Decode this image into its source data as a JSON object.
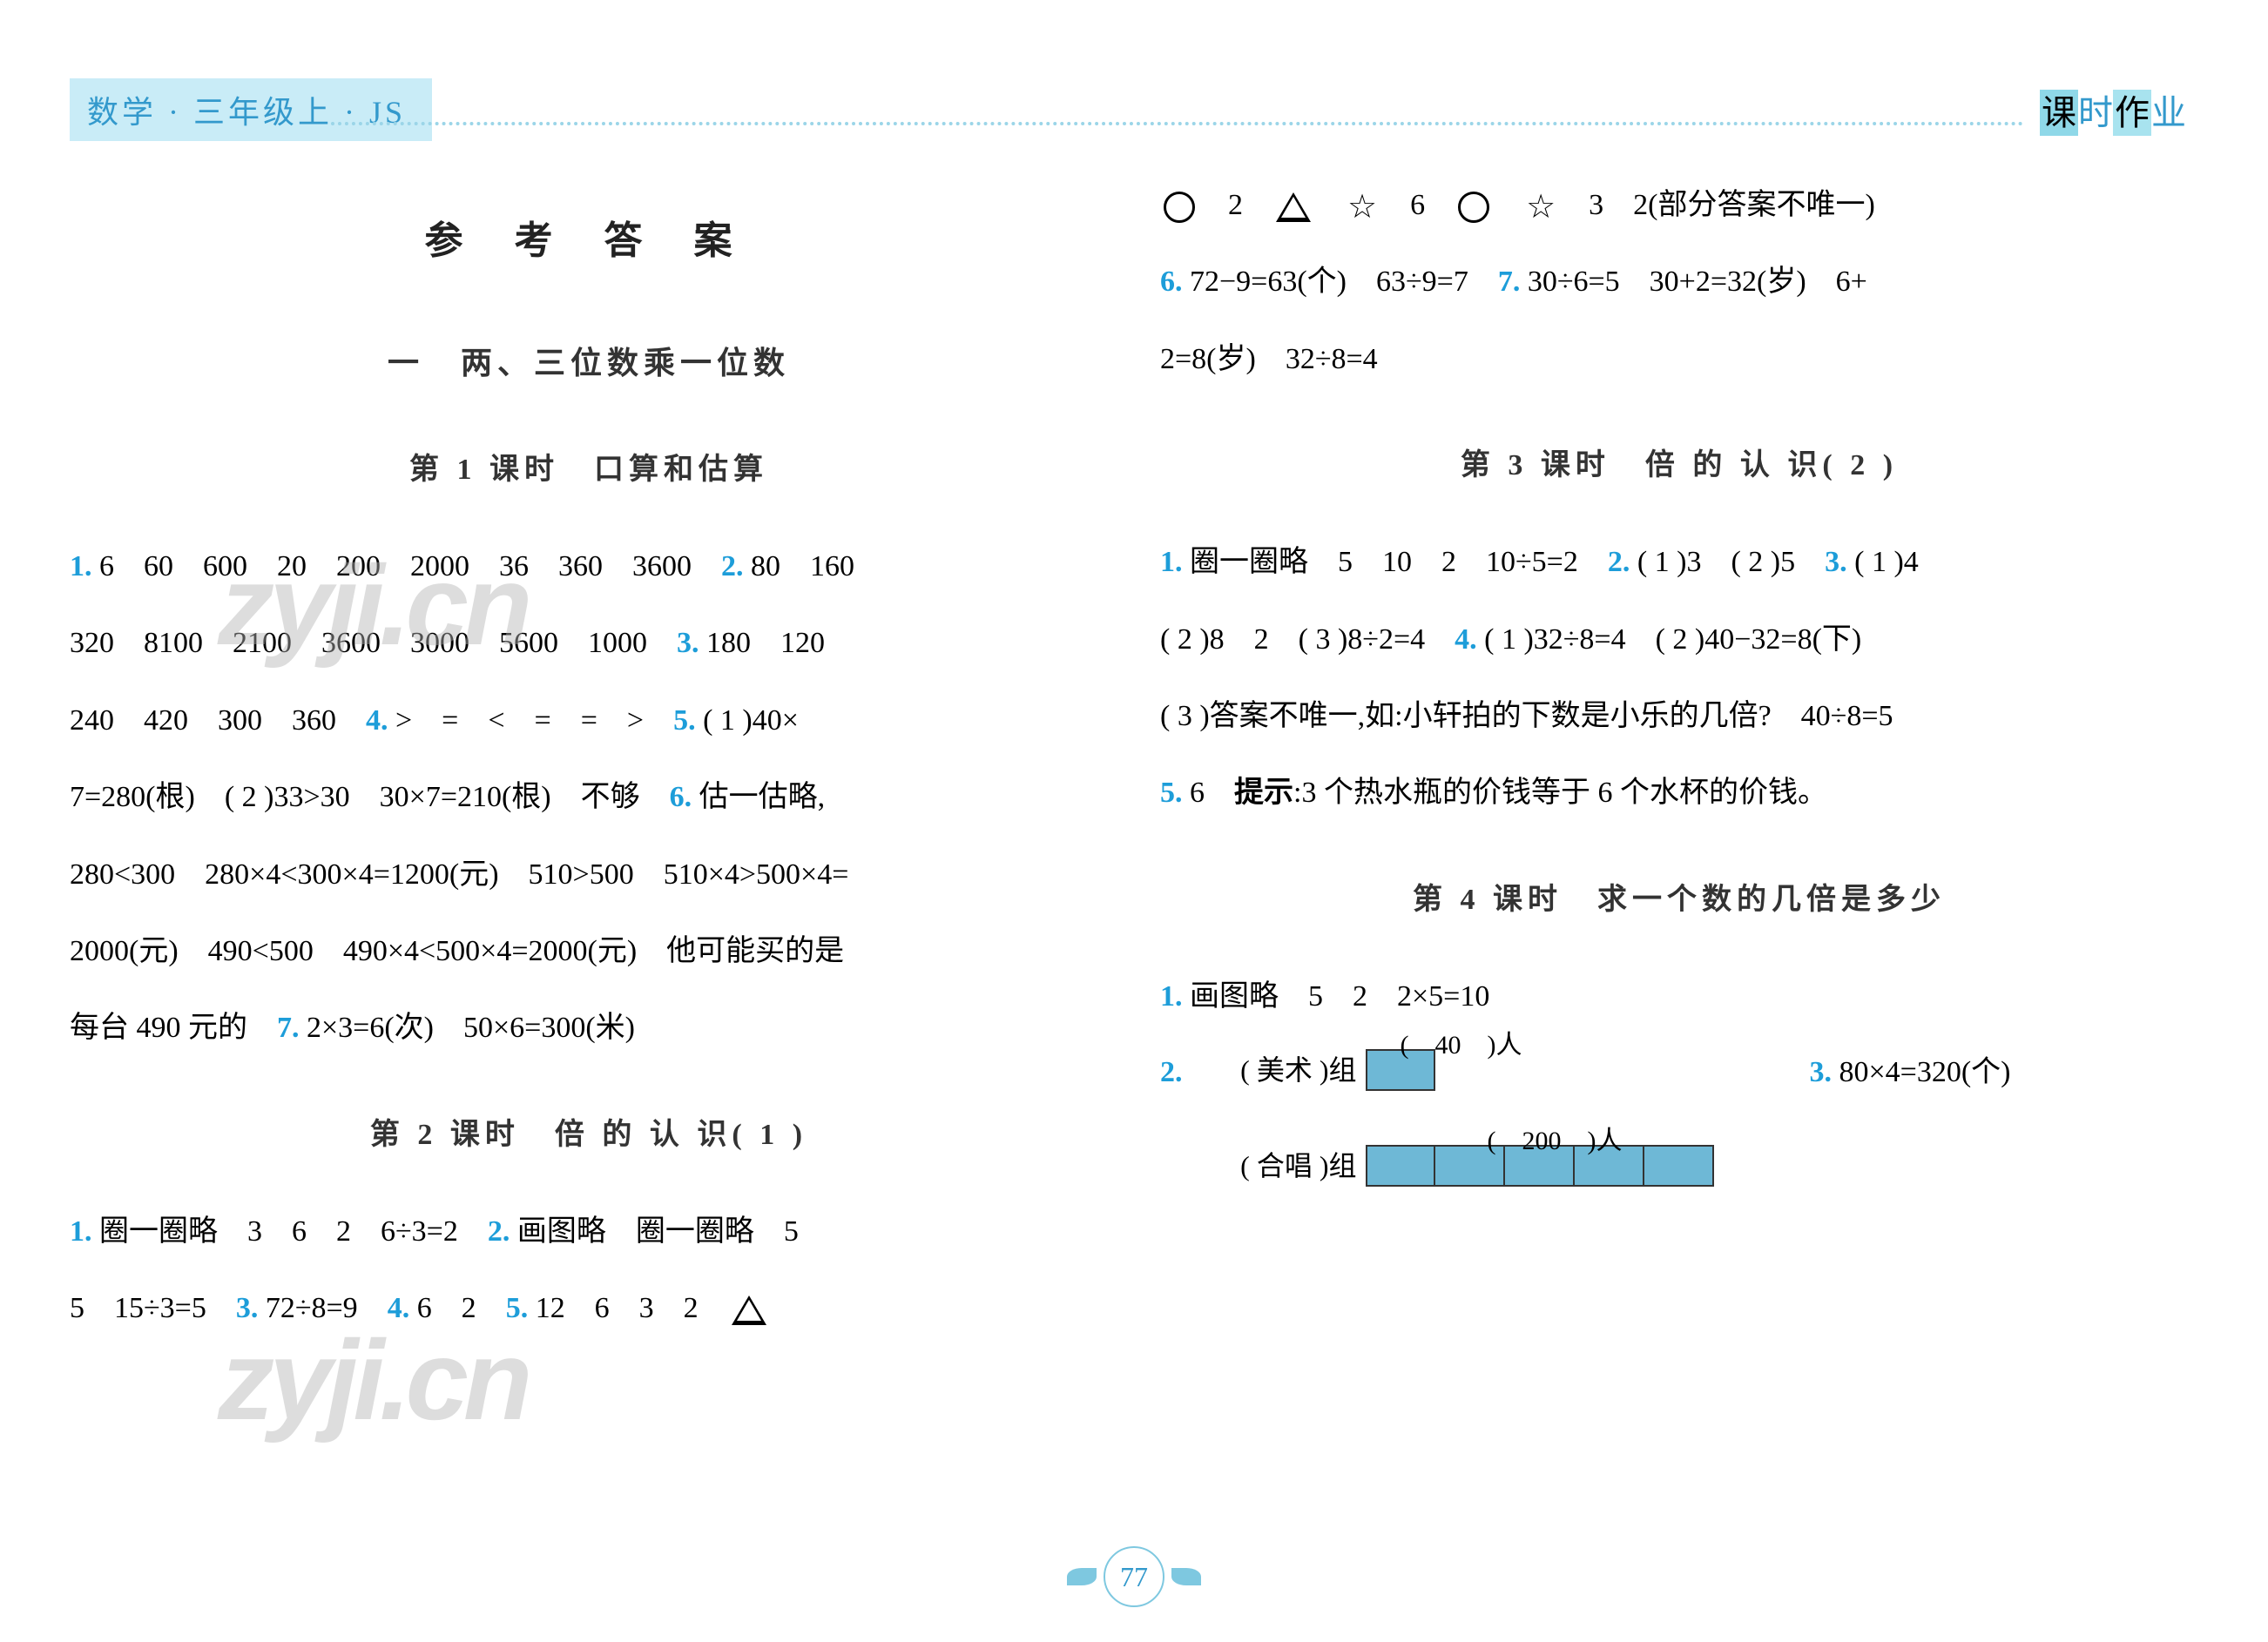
{
  "header": {
    "left": "数学 · 三年级上 · JS",
    "right_chars": [
      "课",
      "时",
      "作",
      "业"
    ]
  },
  "title": "参 考 答 案",
  "chapter": "一　两、三位数乘一位数",
  "sections_left": [
    {
      "title": "第 1 课时　口算和估算",
      "lines": [
        {
          "parts": [
            {
              "q": "1."
            },
            {
              "t": " 6　60　600　20　200　2000　36　360　3600　"
            },
            {
              "q": "2."
            },
            {
              "t": " 80　160"
            }
          ]
        },
        {
          "parts": [
            {
              "t": "320　8100　2100　3600　3000　5600　1000　"
            },
            {
              "q": "3."
            },
            {
              "t": " 180　120"
            }
          ]
        },
        {
          "parts": [
            {
              "t": "240　420　300　360　"
            },
            {
              "q": "4."
            },
            {
              "t": " >　=　<　=　=　>　"
            },
            {
              "q": "5."
            },
            {
              "t": " ( 1 )40×"
            }
          ]
        },
        {
          "parts": [
            {
              "t": "7=280(根)　( 2 )33>30　30×7=210(根)　不够　"
            },
            {
              "q": "6."
            },
            {
              "t": " 估一估略,"
            }
          ]
        },
        {
          "parts": [
            {
              "t": "280<300　280×4<300×4=1200(元)　510>500　510×4>500×4="
            }
          ]
        },
        {
          "parts": [
            {
              "t": "2000(元)　490<500　490×4<500×4=2000(元)　他可能买的是"
            }
          ]
        },
        {
          "parts": [
            {
              "t": "每台 490 元的　"
            },
            {
              "q": "7."
            },
            {
              "t": " 2×3=6(次)　50×6=300(米)"
            }
          ]
        }
      ]
    },
    {
      "title": "第 2 课时　倍 的 认 识( 1 )",
      "lines": [
        {
          "parts": [
            {
              "q": "1."
            },
            {
              "t": " 圈一圈略　3　6　2　6÷3=2　"
            },
            {
              "q": "2."
            },
            {
              "t": " 画图略　圈一圈略　5"
            }
          ]
        },
        {
          "parts": [
            {
              "t": "5　15÷3=5　"
            },
            {
              "q": "3."
            },
            {
              "t": " 72÷8=9　"
            },
            {
              "q": "4."
            },
            {
              "t": " 6　2　"
            },
            {
              "q": "5."
            },
            {
              "t": " 12　6　3　2　"
            },
            {
              "shape": "triangle"
            }
          ]
        }
      ]
    }
  ],
  "sections_right": [
    {
      "pre_lines": [
        {
          "parts": [
            {
              "shape": "circle"
            },
            {
              "t": "　2　"
            },
            {
              "shape": "triangle"
            },
            {
              "t": "　"
            },
            {
              "shape": "star"
            },
            {
              "t": "　6　"
            },
            {
              "shape": "circle"
            },
            {
              "t": "　"
            },
            {
              "shape": "star"
            },
            {
              "t": "　3　2(部分答案不唯一)"
            }
          ]
        },
        {
          "parts": [
            {
              "q": "6."
            },
            {
              "t": " 72−9=63(个)　63÷9=7　"
            },
            {
              "q": "7."
            },
            {
              "t": " 30÷6=5　30+2=32(岁)　6+"
            }
          ]
        },
        {
          "parts": [
            {
              "t": "2=8(岁)　32÷8=4"
            }
          ]
        }
      ]
    },
    {
      "title": "第 3 课时　倍 的 认 识( 2 )",
      "lines": [
        {
          "parts": [
            {
              "q": "1."
            },
            {
              "t": " 圈一圈略　5　10　2　10÷5=2　"
            },
            {
              "q": "2."
            },
            {
              "t": " ( 1 )3　( 2 )5　"
            },
            {
              "q": "3."
            },
            {
              "t": " ( 1 )4"
            }
          ]
        },
        {
          "parts": [
            {
              "t": "( 2 )8　2　( 3 )8÷2=4　"
            },
            {
              "q": "4."
            },
            {
              "t": " ( 1 )32÷8=4　( 2 )40−32=8(下)"
            }
          ]
        },
        {
          "parts": [
            {
              "t": "( 3 )答案不唯一,如:小轩拍的下数是小乐的几倍?　40÷8=5"
            }
          ]
        },
        {
          "parts": [
            {
              "q": "5."
            },
            {
              "t": " 6　"
            },
            {
              "b": "提示"
            },
            {
              "t": ":3 个热水瓶的价钱等于 6 个水杯的价钱。"
            }
          ]
        }
      ]
    },
    {
      "title": "第 4 课时　求一个数的几倍是多少",
      "lines": [
        {
          "parts": [
            {
              "q": "1."
            },
            {
              "t": " 画图略　5　2　2×5=10"
            }
          ]
        }
      ]
    }
  ],
  "diagram": {
    "q2": "2.",
    "q3": "3.",
    "q3_text": " 80×4=320(个)",
    "row1_label": "( 美术 )组",
    "row1_count": "(　40　)人",
    "row2_label": "( 合唱 )组",
    "row2_count": "(　200　)人",
    "bar_color": "#6eb8d6",
    "row1_segments": 1,
    "row2_segments": 5
  },
  "page_number": "77",
  "watermark": "zyji.cn"
}
